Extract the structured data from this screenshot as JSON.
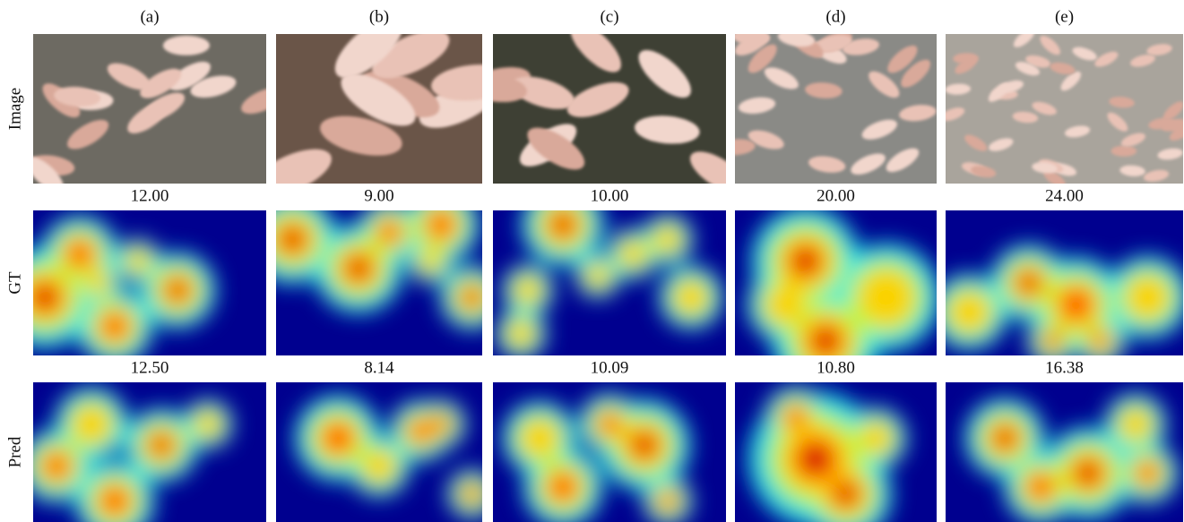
{
  "columns": [
    "(a)",
    "(b)",
    "(c)",
    "(d)",
    "(e)"
  ],
  "rows": [
    "Image",
    "GT",
    "Pred"
  ],
  "gt_counts": [
    "12.00",
    "9.00",
    "10.00",
    "20.00",
    "24.00"
  ],
  "pred_counts": [
    "12.50",
    "8.14",
    "10.09",
    "10.80",
    "16.38"
  ]
}
